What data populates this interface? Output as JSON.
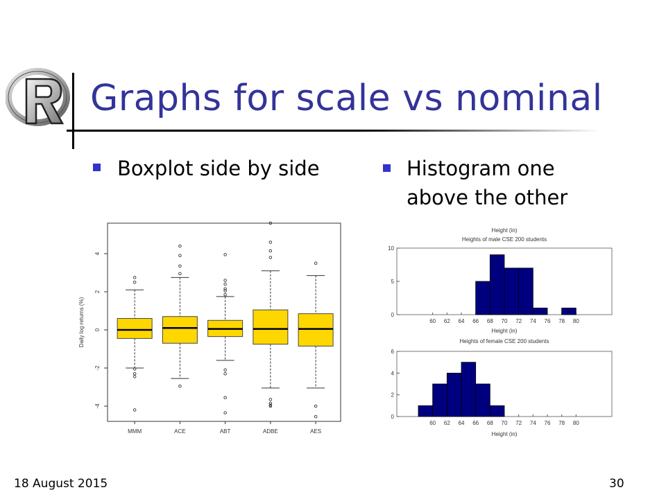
{
  "slide": {
    "title": "Graphs for scale vs nominal",
    "bullets": [
      "Boxplot side by side",
      "Histogram one above the other"
    ],
    "footer_date": "18 August 2015",
    "page_number": "30"
  },
  "colors": {
    "title": "#333399",
    "bullet": "#3333cc",
    "box_fill": "#ffd700",
    "hist_fill": "#00007f"
  },
  "icons": {
    "logo": "r-logo-icon"
  },
  "chart_data": [
    {
      "type": "box",
      "title": "",
      "xlabel": "",
      "ylabel": "Daily log returns (%)",
      "ylim": [
        -4.8,
        5.6
      ],
      "ytick_values": [
        -4,
        -2,
        0,
        2,
        4
      ],
      "ytick_labels": [
        "-4",
        "-2",
        "0",
        "2",
        "4"
      ],
      "categories": [
        "MMM",
        "ACE",
        "ABT",
        "ADBE",
        "AES"
      ],
      "boxes": [
        {
          "name": "MMM",
          "whisker_low": -2.0,
          "q1": -0.45,
          "median": 0.0,
          "q3": 0.6,
          "whisker_high": 2.1,
          "outliers": [
            2.5,
            2.75,
            -2.05,
            -2.3,
            -2.45,
            -4.2
          ]
        },
        {
          "name": "ACE",
          "whisker_low": -2.55,
          "q1": -0.7,
          "median": 0.1,
          "q3": 0.7,
          "whisker_high": 2.75,
          "outliers": [
            2.95,
            3.35,
            3.9,
            4.4,
            -2.95
          ]
        },
        {
          "name": "ABT",
          "whisker_low": -1.6,
          "q1": -0.35,
          "median": 0.05,
          "q3": 0.5,
          "whisker_high": 1.75,
          "outliers": [
            1.85,
            2.05,
            2.15,
            2.4,
            2.6,
            3.95,
            -2.1,
            -2.3,
            -3.55,
            -4.35
          ]
        },
        {
          "name": "ADBE",
          "whisker_low": -3.05,
          "q1": -0.75,
          "median": 0.05,
          "q3": 1.05,
          "whisker_high": 3.1,
          "outliers": [
            3.8,
            4.15,
            4.6,
            5.6,
            -3.65,
            -3.85,
            -3.95,
            -4.0
          ]
        },
        {
          "name": "AES",
          "whisker_low": -3.05,
          "q1": -0.85,
          "median": 0.05,
          "q3": 0.85,
          "whisker_high": 2.85,
          "outliers": [
            3.5,
            -4.0,
            -4.55
          ]
        }
      ]
    },
    {
      "type": "bar",
      "title": "Heights of male CSE 200 students",
      "top_label": "Height (in)",
      "xlabel": "Height (in)",
      "ylabel": "",
      "xlim": [
        55,
        85
      ],
      "ylim": [
        0,
        10
      ],
      "xticks": [
        60,
        62,
        64,
        66,
        68,
        70,
        72,
        74,
        76,
        78,
        80
      ],
      "yticks": [
        0,
        5,
        10
      ],
      "bin_width": 2,
      "bins": [
        {
          "x": 67,
          "value": 5
        },
        {
          "x": 69,
          "value": 9
        },
        {
          "x": 71,
          "value": 7
        },
        {
          "x": 73,
          "value": 7
        },
        {
          "x": 75,
          "value": 1
        },
        {
          "x": 79,
          "value": 1
        }
      ]
    },
    {
      "type": "bar",
      "title": "Heights of female CSE 200 students",
      "xlabel": "Height (in)",
      "ylabel": "",
      "xlim": [
        55,
        85
      ],
      "ylim": [
        0,
        6
      ],
      "xticks": [
        60,
        62,
        64,
        66,
        68,
        70,
        72,
        74,
        76,
        78,
        80
      ],
      "yticks": [
        0,
        2,
        4,
        6
      ],
      "bin_width": 2,
      "bins": [
        {
          "x": 59,
          "value": 1
        },
        {
          "x": 61,
          "value": 3
        },
        {
          "x": 63,
          "value": 4
        },
        {
          "x": 65,
          "value": 5
        },
        {
          "x": 67,
          "value": 3
        },
        {
          "x": 69,
          "value": 1
        }
      ]
    }
  ]
}
